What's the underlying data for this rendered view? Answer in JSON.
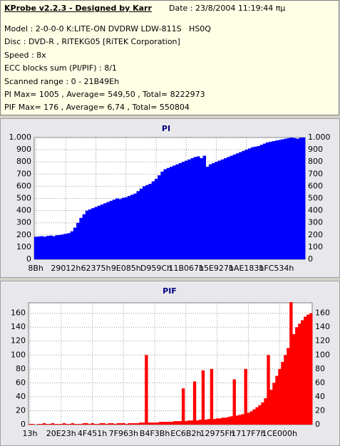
{
  "header": {
    "title": "KProbe v2.2.3 - Designed by Karr",
    "date": "Date : 23/8/2004 11:19:44 πμ",
    "lines": [
      "Model : 2-0-0-0 K:LITE-ON DVDRW LDW-811S   HS0Q",
      "Disc : DVD-R , RITEKG05 [RiTEK Corporation]",
      "Speed : 8x",
      "ECC blocks sum (PI/PIF) : 8/1",
      "Scanned range : 0 - 21B49Eh",
      "PI Max= 1005 , Average= 549,50 , Total= 8222973",
      "PIF Max= 176 , Average= 6,74 , Total= 550804"
    ]
  },
  "chart_data": [
    {
      "type": "bar",
      "title": "PI",
      "color": "#0000ff",
      "grid": true,
      "ylim": [
        0,
        1000
      ],
      "yticks": [
        0,
        100,
        200,
        300,
        400,
        500,
        600,
        700,
        800,
        900,
        {
          "value": 1000,
          "label": "1.000"
        }
      ],
      "categories": [
        "8Bh",
        null,
        null,
        null,
        null,
        null,
        null,
        null,
        null,
        null,
        "29012h",
        null,
        null,
        null,
        null,
        null,
        null,
        null,
        null,
        null,
        "62375h",
        null,
        null,
        null,
        null,
        null,
        null,
        null,
        null,
        null,
        "9E085h",
        null,
        null,
        null,
        null,
        null,
        null,
        null,
        null,
        null,
        "D959Ch",
        null,
        null,
        null,
        null,
        null,
        null,
        null,
        null,
        null,
        "11B067h",
        null,
        null,
        null,
        null,
        null,
        null,
        null,
        null,
        null,
        "15E927h",
        null,
        null,
        null,
        null,
        null,
        null,
        null,
        null,
        null,
        "1AE183h",
        null,
        null,
        null,
        null,
        null,
        null,
        null,
        null,
        null,
        "1FC534h",
        null,
        null,
        null,
        null,
        null,
        null,
        null,
        null,
        null
      ],
      "values": [
        185,
        188,
        190,
        186,
        192,
        195,
        190,
        198,
        200,
        205,
        210,
        215,
        230,
        260,
        300,
        340,
        370,
        400,
        410,
        420,
        430,
        440,
        450,
        460,
        470,
        480,
        490,
        500,
        495,
        505,
        510,
        520,
        530,
        540,
        560,
        580,
        600,
        610,
        620,
        640,
        660,
        690,
        720,
        740,
        750,
        760,
        770,
        780,
        790,
        800,
        810,
        820,
        830,
        840,
        845,
        830,
        850,
        760,
        780,
        790,
        800,
        810,
        820,
        830,
        840,
        850,
        860,
        870,
        880,
        890,
        900,
        910,
        920,
        925,
        930,
        940,
        950,
        960,
        965,
        970,
        975,
        980,
        985,
        990,
        995,
        1000,
        995,
        990,
        998,
        1000
      ]
    },
    {
      "type": "bar",
      "title": "PIF",
      "color": "#ff0000",
      "grid": true,
      "ylim": [
        0,
        175
      ],
      "yticks": [
        0,
        20,
        40,
        60,
        80,
        100,
        120,
        140,
        160
      ],
      "categories": [
        "13h",
        null,
        null,
        null,
        null,
        null,
        null,
        null,
        null,
        null,
        null,
        "20E23h",
        null,
        null,
        null,
        null,
        null,
        null,
        null,
        null,
        null,
        null,
        "4F451h",
        null,
        null,
        null,
        null,
        null,
        null,
        null,
        null,
        null,
        null,
        "7F963h",
        null,
        null,
        null,
        null,
        null,
        null,
        null,
        null,
        null,
        null,
        "B4F3Bh",
        null,
        null,
        null,
        null,
        null,
        null,
        null,
        null,
        null,
        null,
        "EC6B2h",
        null,
        null,
        null,
        null,
        null,
        null,
        null,
        null,
        null,
        null,
        "12975Fh",
        null,
        null,
        null,
        null,
        null,
        null,
        null,
        null,
        null,
        null,
        "1717F7h",
        null,
        null,
        null,
        null,
        null,
        null,
        null,
        null,
        null,
        null,
        "1CE000h",
        null,
        null,
        null,
        null,
        null,
        null,
        null,
        null,
        null,
        null,
        null
      ],
      "values": [
        1,
        1,
        0,
        1,
        1,
        2,
        1,
        1,
        2,
        1,
        1,
        1,
        2,
        1,
        1,
        2,
        1,
        1,
        1,
        2,
        2,
        1,
        2,
        1,
        1,
        2,
        2,
        1,
        2,
        2,
        1,
        2,
        2,
        2,
        1,
        2,
        2,
        2,
        2,
        3,
        3,
        100,
        3,
        3,
        3,
        3,
        4,
        4,
        4,
        4,
        4,
        5,
        5,
        5,
        52,
        5,
        6,
        6,
        62,
        6,
        7,
        78,
        7,
        8,
        80,
        8,
        9,
        9,
        10,
        10,
        11,
        12,
        65,
        13,
        14,
        15,
        80,
        17,
        19,
        22,
        25,
        28,
        32,
        38,
        100,
        50,
        60,
        70,
        80,
        90,
        100,
        110,
        176,
        130,
        140,
        145,
        150,
        155,
        158,
        160
      ]
    }
  ]
}
